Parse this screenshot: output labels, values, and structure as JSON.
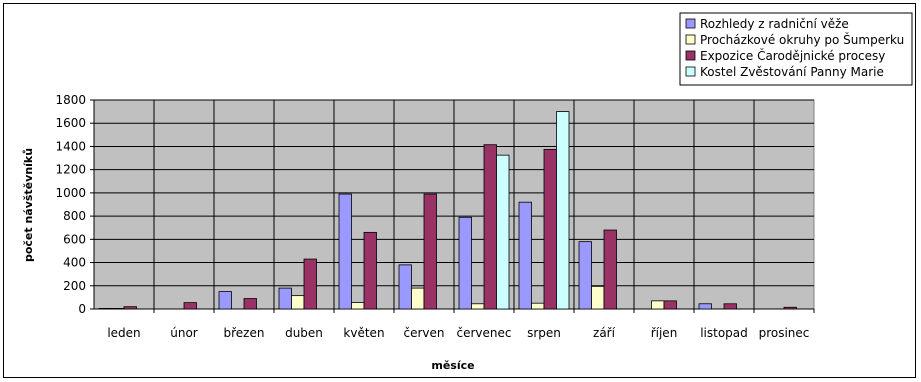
{
  "chart_data": {
    "type": "bar",
    "title": "",
    "xlabel": "měsíce",
    "ylabel": "počet návštěvníků",
    "ylim": [
      0,
      1800
    ],
    "yticks": [
      0,
      200,
      400,
      600,
      800,
      1000,
      1200,
      1400,
      1600,
      1800
    ],
    "grid": true,
    "legend_position": "top-right",
    "plot_background": "#c0c0c0",
    "categories": [
      "leden",
      "únor",
      "březen",
      "duben",
      "květen",
      "červen",
      "červenec",
      "srpen",
      "září",
      "říjen",
      "listopad",
      "prosinec"
    ],
    "series": [
      {
        "name": "Rozhledy z radniční věže",
        "color": "#9999ff",
        "values": [
          5,
          0,
          150,
          180,
          990,
          380,
          790,
          920,
          580,
          0,
          45,
          0
        ]
      },
      {
        "name": "Procházkové okruhy po Šumperku",
        "color": "#ffffcc",
        "values": [
          5,
          0,
          0,
          115,
          55,
          180,
          45,
          50,
          195,
          70,
          0,
          0
        ]
      },
      {
        "name": "Expozice Čarodějnické procesy",
        "color": "#993366",
        "values": [
          20,
          55,
          90,
          430,
          660,
          990,
          1415,
          1375,
          680,
          70,
          45,
          15
        ]
      },
      {
        "name": "Kostel Zvěstování Panny Marie",
        "color": "#ccffff",
        "values": [
          0,
          0,
          0,
          0,
          0,
          0,
          1325,
          1700,
          0,
          0,
          0,
          0
        ]
      }
    ]
  }
}
